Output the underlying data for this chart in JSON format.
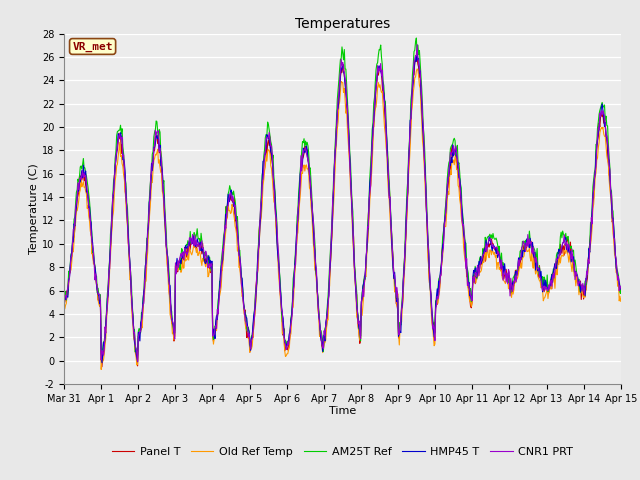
{
  "title": "Temperatures",
  "xlabel": "Time",
  "ylabel": "Temperature (C)",
  "ylim": [
    -2,
    28
  ],
  "yticks": [
    -2,
    0,
    2,
    4,
    6,
    8,
    10,
    12,
    14,
    16,
    18,
    20,
    22,
    24,
    26,
    28
  ],
  "series_names": [
    "Panel T",
    "Old Ref Temp",
    "AM25T Ref",
    "HMP45 T",
    "CNR1 PRT"
  ],
  "series_colors": [
    "#cc0000",
    "#ff9900",
    "#00cc00",
    "#0000cc",
    "#9900cc"
  ],
  "xtick_labels": [
    "Mar 31",
    "Apr 1",
    "Apr 2",
    "Apr 3",
    "Apr 4",
    "Apr 5",
    "Apr 6",
    "Apr 7",
    "Apr 8",
    "Apr 9",
    "Apr 10",
    "Apr 11",
    "Apr 12",
    "Apr 13",
    "Apr 14",
    "Apr 15"
  ],
  "annotation_text": "VR_met",
  "bg_color": "#e8e8e8",
  "plot_bg_color": "#ececec",
  "grid_color": "#ffffff",
  "title_fontsize": 10,
  "axis_label_fontsize": 8,
  "tick_fontsize": 7,
  "legend_fontsize": 8
}
